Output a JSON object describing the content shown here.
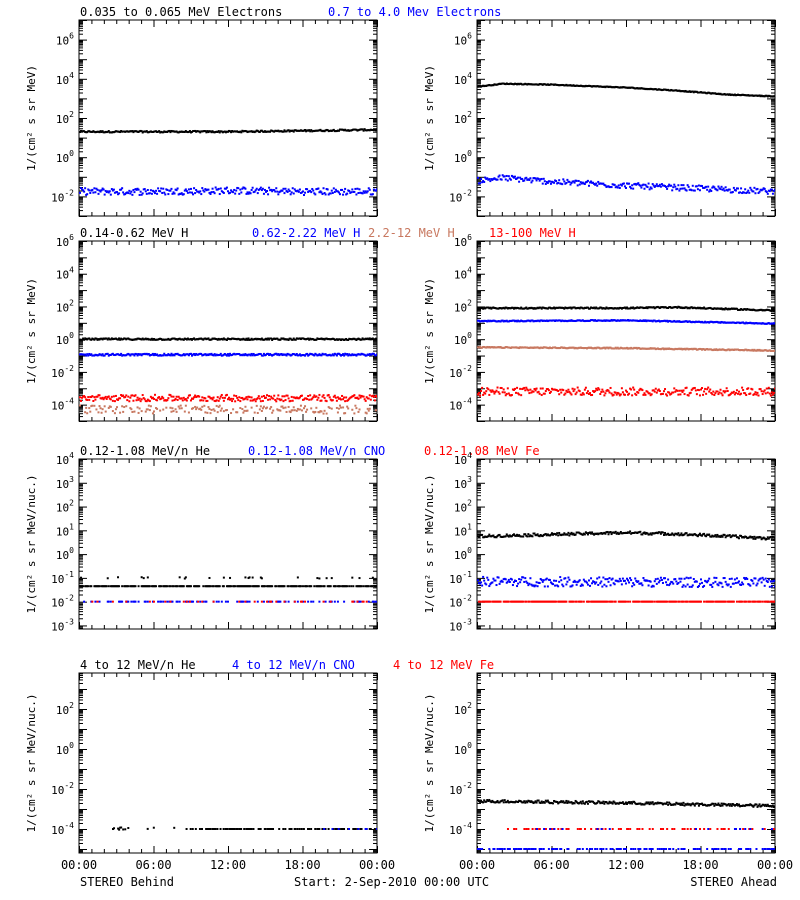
{
  "colors": {
    "black": "#000000",
    "blue": "#0000ff",
    "tan": "#c87860",
    "red": "#ff0000"
  },
  "footer": {
    "left": "STEREO Behind",
    "center": "Start:  2-Sep-2010 00:00 UTC",
    "right": "STEREO Ahead"
  },
  "chart_data": [
    {
      "type": "scatter",
      "row": 1,
      "side": "behind",
      "xlabel": "",
      "ylabel": "1/(cm² s sr MeV)",
      "x_ticks": [
        "00:00",
        "06:00",
        "12:00",
        "18:00",
        "00:00"
      ],
      "y_scale": "log",
      "ylim_exponent": [
        -3,
        7
      ],
      "y_tick_exponents": [
        -2,
        0,
        2,
        4,
        6
      ],
      "legend": [
        {
          "text": "0.035 to 0.065 MeV Electrons",
          "color": "#000000"
        },
        {
          "text": "0.7 to 4.0 Mev Electrons",
          "color": "#0000ff"
        }
      ],
      "series": [
        {
          "name": "0.035 to 0.065 MeV Electrons",
          "color": "#000000",
          "x_hours": [
            0,
            6,
            12,
            18,
            24
          ],
          "log10_flux": [
            1.3,
            1.3,
            1.3,
            1.35,
            1.4
          ],
          "scatter": 0.04,
          "density": 1
        },
        {
          "name": "0.7 to 4.0 Mev Electrons",
          "color": "#0000ff",
          "x_hours": [
            0,
            6,
            12,
            18,
            24
          ],
          "log10_flux": [
            -1.75,
            -1.75,
            -1.7,
            -1.75,
            -1.75
          ],
          "scatter": 0.18,
          "density": 1
        }
      ]
    },
    {
      "type": "scatter",
      "row": 1,
      "side": "ahead",
      "xlabel": "",
      "ylabel": "1/(cm² s sr MeV)",
      "x_ticks": [
        "00:00",
        "06:00",
        "12:00",
        "18:00",
        "00:00"
      ],
      "y_scale": "log",
      "ylim_exponent": [
        -3,
        7
      ],
      "y_tick_exponents": [
        -2,
        0,
        2,
        4,
        6
      ],
      "legend": [],
      "series": [
        {
          "name": "0.035 to 0.065 MeV Electrons",
          "color": "#000000",
          "x_hours": [
            0,
            2,
            6,
            12,
            16,
            20,
            24
          ],
          "log10_flux": [
            3.6,
            3.75,
            3.7,
            3.55,
            3.4,
            3.2,
            3.1
          ],
          "scatter": 0.02,
          "density": 1
        },
        {
          "name": "0.7 to 4.0 Mev Electrons",
          "color": "#0000ff",
          "x_hours": [
            0,
            2,
            6,
            12,
            18,
            24
          ],
          "log10_flux": [
            -1.2,
            -1.05,
            -1.25,
            -1.45,
            -1.6,
            -1.75
          ],
          "scatter": 0.15,
          "density": 1
        }
      ]
    },
    {
      "type": "scatter",
      "row": 2,
      "side": "behind",
      "xlabel": "",
      "ylabel": "1/(cm² s sr MeV)",
      "x_ticks": [
        "00:00",
        "06:00",
        "12:00",
        "18:00",
        "00:00"
      ],
      "y_scale": "log",
      "ylim_exponent": [
        -5,
        6
      ],
      "y_tick_exponents": [
        -4,
        -2,
        0,
        2,
        4,
        6
      ],
      "legend": [
        {
          "text": "0.14-0.62 MeV H",
          "color": "#000000"
        },
        {
          "text": "0.62-2.22 MeV H",
          "color": "#0000ff"
        },
        {
          "text": "2.2-12 MeV H",
          "color": "#c87860"
        },
        {
          "text": "13-100 MeV H",
          "color": "#ff0000"
        }
      ],
      "series": [
        {
          "name": "0.14-0.62 MeV H",
          "color": "#000000",
          "x_hours": [
            0,
            24
          ],
          "log10_flux": [
            0.0,
            0.0
          ],
          "scatter": 0.05,
          "density": 1
        },
        {
          "name": "0.62-2.22 MeV H",
          "color": "#0000ff",
          "x_hours": [
            0,
            24
          ],
          "log10_flux": [
            -0.95,
            -0.95
          ],
          "scatter": 0.06,
          "density": 1
        },
        {
          "name": "2.2-12 MeV H",
          "color": "#c87860",
          "x_hours": [
            0,
            24
          ],
          "log10_flux": [
            -4.3,
            -4.3
          ],
          "scatter": 0.25,
          "density": 0.6
        },
        {
          "name": "13-100 MeV H",
          "color": "#ff0000",
          "x_hours": [
            0,
            24
          ],
          "log10_flux": [
            -3.6,
            -3.6
          ],
          "scatter": 0.2,
          "density": 1
        }
      ]
    },
    {
      "type": "scatter",
      "row": 2,
      "side": "ahead",
      "xlabel": "",
      "ylabel": "1/(cm² s sr MeV)",
      "x_ticks": [
        "00:00",
        "06:00",
        "12:00",
        "18:00",
        "00:00"
      ],
      "y_scale": "log",
      "ylim_exponent": [
        -5,
        6
      ],
      "y_tick_exponents": [
        -4,
        -2,
        0,
        2,
        4,
        6
      ],
      "legend": [],
      "series": [
        {
          "name": "0.14-0.62 MeV H",
          "color": "#000000",
          "x_hours": [
            0,
            12,
            16,
            24
          ],
          "log10_flux": [
            1.9,
            1.9,
            1.95,
            1.75
          ],
          "scatter": 0.04,
          "density": 1
        },
        {
          "name": "0.62-2.22 MeV H",
          "color": "#0000ff",
          "x_hours": [
            0,
            12,
            24
          ],
          "log10_flux": [
            1.1,
            1.15,
            0.95
          ],
          "scatter": 0.03,
          "density": 1
        },
        {
          "name": "2.2-12 MeV H",
          "color": "#c87860",
          "x_hours": [
            0,
            12,
            24
          ],
          "log10_flux": [
            -0.5,
            -0.55,
            -0.7
          ],
          "scatter": 0.03,
          "density": 1
        },
        {
          "name": "13-100 MeV H",
          "color": "#ff0000",
          "x_hours": [
            0,
            24
          ],
          "log10_flux": [
            -3.2,
            -3.2
          ],
          "scatter": 0.25,
          "density": 1
        }
      ]
    },
    {
      "type": "scatter",
      "row": 3,
      "side": "behind",
      "xlabel": "",
      "ylabel": "1/(cm² s sr MeV/nuc.)",
      "x_ticks": [
        "00:00",
        "06:00",
        "12:00",
        "18:00",
        "00:00"
      ],
      "y_scale": "log",
      "ylim_exponent": [
        -3.15,
        4
      ],
      "y_tick_exponents": [
        -3,
        -2,
        -1,
        0,
        1,
        2,
        3,
        4
      ],
      "legend": [
        {
          "text": "0.12-1.08 MeV/n He",
          "color": "#000000"
        },
        {
          "text": "0.12-1.08 MeV/n CNO",
          "color": "#0000ff"
        },
        {
          "text": "0.12-1.08 MeV Fe",
          "color": "#ff0000"
        }
      ],
      "series": [
        {
          "name": "0.12-1.08 MeV/n He",
          "color": "#000000",
          "x_hours": [
            0,
            24
          ],
          "log10_flux": [
            -1.35,
            -1.35
          ],
          "scatter": 0.0,
          "density": 0.75
        },
        {
          "name": "0.12-1.08 MeV/n He",
          "color": "#000000",
          "x_hours": [
            0,
            24
          ],
          "log10_flux": [
            -1.0,
            -1.0
          ],
          "scatter": 0.03,
          "density": 0.12
        },
        {
          "name": "0.12-1.08 MeV/n CNO",
          "color": "#0000ff",
          "x_hours": [
            0,
            24
          ],
          "log10_flux": [
            -2.0,
            -2.0
          ],
          "scatter": 0.0,
          "density": 0.35
        },
        {
          "name": "0.12-1.08 MeV Fe",
          "color": "#ff0000",
          "x_hours": [
            0,
            24
          ],
          "log10_flux": [
            -2.0,
            -2.0
          ],
          "scatter": 0.0,
          "density": 0.12
        }
      ]
    },
    {
      "type": "scatter",
      "row": 3,
      "side": "ahead",
      "xlabel": "",
      "ylabel": "1/(cm² s sr MeV/nuc.)",
      "x_ticks": [
        "00:00",
        "06:00",
        "12:00",
        "18:00",
        "00:00"
      ],
      "y_scale": "log",
      "ylim_exponent": [
        -3.15,
        4
      ],
      "y_tick_exponents": [
        -3,
        -2,
        -1,
        0,
        1,
        2,
        3,
        4
      ],
      "legend": [],
      "series": [
        {
          "name": "0.12-1.08 MeV/n He",
          "color": "#000000",
          "x_hours": [
            0,
            12,
            16,
            24
          ],
          "log10_flux": [
            0.75,
            0.9,
            0.85,
            0.65
          ],
          "scatter": 0.06,
          "density": 1
        },
        {
          "name": "0.12-1.08 MeV/n CNO",
          "color": "#0000ff",
          "x_hours": [
            0,
            24
          ],
          "log10_flux": [
            -1.15,
            -1.2
          ],
          "scatter": 0.2,
          "density": 1
        },
        {
          "name": "0.12-1.08 MeV Fe",
          "color": "#ff0000",
          "x_hours": [
            0,
            24
          ],
          "log10_flux": [
            -2.0,
            -2.0
          ],
          "scatter": 0.0,
          "density": 0.8
        }
      ]
    },
    {
      "type": "scatter",
      "row": 4,
      "side": "behind",
      "xlabel": "",
      "ylabel": "1/(cm² s sr MeV/nuc.)",
      "x_ticks": [
        "00:00",
        "06:00",
        "12:00",
        "18:00",
        "00:00"
      ],
      "y_scale": "log",
      "ylim_exponent": [
        -5.2,
        3.8
      ],
      "y_tick_exponents": [
        -4,
        -2,
        0,
        2
      ],
      "legend": [
        {
          "text": "4 to 12 MeV/n He",
          "color": "#000000"
        },
        {
          "text": "4 to 12 MeV/n CNO",
          "color": "#0000ff"
        },
        {
          "text": "4 to 12 MeV Fe",
          "color": "#ff0000"
        }
      ],
      "series": [
        {
          "name": "4 to 12 MeV/n He",
          "color": "#000000",
          "x_hours": [
            8.5,
            24
          ],
          "log10_flux": [
            -4.0,
            -4.0
          ],
          "scatter": 0.0,
          "density": 0.55
        },
        {
          "name": "4 to 12 MeV/n He",
          "color": "#000000",
          "x_hours": [
            2,
            8
          ],
          "log10_flux": [
            -4.0,
            -4.0
          ],
          "scatter": 0.1,
          "density": 0.15
        },
        {
          "name": "4 to 12 MeV/n CNO",
          "color": "#0000ff",
          "x_hours": [
            19,
            24
          ],
          "log10_flux": [
            -4.0,
            -4.0
          ],
          "scatter": 0.0,
          "density": 0.2
        }
      ]
    },
    {
      "type": "scatter",
      "row": 4,
      "side": "ahead",
      "xlabel": "",
      "ylabel": "1/(cm² s sr MeV/nuc.)",
      "x_ticks": [
        "00:00",
        "06:00",
        "12:00",
        "18:00",
        "00:00"
      ],
      "y_scale": "log",
      "ylim_exponent": [
        -5.2,
        3.8
      ],
      "y_tick_exponents": [
        -4,
        -2,
        0,
        2
      ],
      "legend": [],
      "series": [
        {
          "name": "4 to 12 MeV/n He",
          "color": "#000000",
          "x_hours": [
            0,
            12,
            24
          ],
          "log10_flux": [
            -2.6,
            -2.7,
            -2.85
          ],
          "scatter": 0.07,
          "density": 1
        },
        {
          "name": "4 to 12 MeV Fe",
          "color": "#ff0000",
          "x_hours": [
            2,
            24
          ],
          "log10_flux": [
            -4.0,
            -4.0
          ],
          "scatter": 0.0,
          "density": 0.25
        },
        {
          "name": "4 to 12 MeV/n CNO",
          "color": "#0000ff",
          "x_hours": [
            0,
            24
          ],
          "log10_flux": [
            -5.0,
            -5.0
          ],
          "scatter": 0.0,
          "density": 0.45
        },
        {
          "name": "4 to 12 MeV/n CNO",
          "color": "#0000ff",
          "x_hours": [
            4,
            24
          ],
          "log10_flux": [
            -4.0,
            -4.0
          ],
          "scatter": 0.0,
          "density": 0.06
        }
      ]
    }
  ]
}
